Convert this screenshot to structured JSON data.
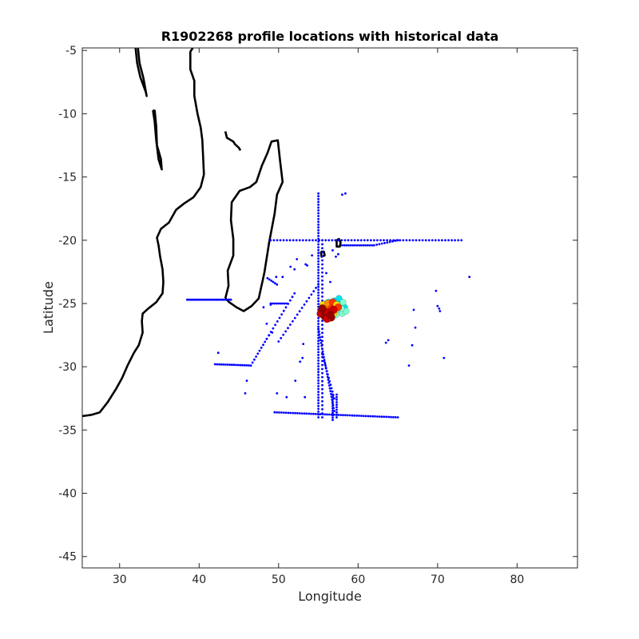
{
  "chart_data": {
    "type": "scatter",
    "title": "R1902268 profile locations with historical data",
    "xlabel": "Longitude",
    "ylabel": "Latitude",
    "xlim": [
      25.3,
      87.6
    ],
    "ylim": [
      -45.9,
      -4.8
    ],
    "xticks": [
      30,
      40,
      50,
      60,
      70,
      80
    ],
    "yticks": [
      -5,
      -10,
      -15,
      -20,
      -25,
      -30,
      -35,
      -40,
      -45
    ],
    "grid": false,
    "legend": "none",
    "colors": {
      "historical": "#0000ff",
      "coast": "#000000",
      "profile_ramp": [
        "#00e5ee",
        "#7fffd4",
        "#ffd700",
        "#ff8c00",
        "#ff3300",
        "#cc0000",
        "#990000"
      ]
    },
    "coastlines": [
      [
        [
          25.3,
          -33.9
        ],
        [
          26.5,
          -33.8
        ],
        [
          27.5,
          -33.6
        ],
        [
          28.5,
          -32.8
        ],
        [
          29.5,
          -31.8
        ],
        [
          30.3,
          -30.9
        ],
        [
          31.0,
          -29.9
        ],
        [
          31.8,
          -28.9
        ],
        [
          32.4,
          -28.3
        ],
        [
          32.9,
          -27.3
        ],
        [
          32.8,
          -26.4
        ],
        [
          32.9,
          -25.8
        ],
        [
          33.6,
          -25.4
        ],
        [
          34.6,
          -24.9
        ],
        [
          35.4,
          -24.2
        ],
        [
          35.5,
          -23.3
        ],
        [
          35.4,
          -22.3
        ],
        [
          35.1,
          -21.3
        ],
        [
          34.9,
          -20.4
        ],
        [
          34.7,
          -19.8
        ],
        [
          35.2,
          -19.1
        ],
        [
          36.2,
          -18.6
        ],
        [
          37.1,
          -17.6
        ],
        [
          38.1,
          -17.1
        ],
        [
          39.3,
          -16.6
        ],
        [
          40.2,
          -15.8
        ],
        [
          40.6,
          -14.8
        ],
        [
          40.5,
          -13.4
        ],
        [
          40.4,
          -12.1
        ],
        [
          40.2,
          -11.1
        ],
        [
          39.8,
          -10.0
        ],
        [
          39.4,
          -8.6
        ],
        [
          39.4,
          -7.4
        ],
        [
          38.9,
          -6.5
        ],
        [
          38.9,
          -5.1
        ],
        [
          39.2,
          -4.8
        ]
      ],
      [
        [
          43.3,
          -24.6
        ],
        [
          43.7,
          -23.6
        ],
        [
          43.6,
          -22.4
        ],
        [
          44.3,
          -21.2
        ],
        [
          44.3,
          -19.9
        ],
        [
          44.0,
          -18.4
        ],
        [
          44.1,
          -17.0
        ],
        [
          45.1,
          -16.1
        ],
        [
          46.4,
          -15.8
        ],
        [
          47.2,
          -15.4
        ],
        [
          47.9,
          -14.1
        ],
        [
          48.6,
          -13.1
        ],
        [
          49.1,
          -12.2
        ],
        [
          49.9,
          -12.1
        ],
        [
          50.2,
          -13.8
        ],
        [
          50.5,
          -15.4
        ],
        [
          49.8,
          -16.4
        ],
        [
          49.5,
          -17.9
        ],
        [
          48.8,
          -20.2
        ],
        [
          48.2,
          -22.6
        ],
        [
          47.5,
          -24.6
        ],
        [
          46.6,
          -25.2
        ],
        [
          45.6,
          -25.6
        ],
        [
          44.7,
          -25.3
        ],
        [
          43.8,
          -24.9
        ],
        [
          43.3,
          -24.6
        ]
      ],
      [
        [
          32.0,
          -4.8
        ],
        [
          32.2,
          -6.0
        ],
        [
          32.6,
          -7.1
        ],
        [
          33.3,
          -8.3
        ],
        [
          33.4,
          -8.6
        ],
        [
          33.0,
          -7.2
        ],
        [
          32.5,
          -6.0
        ],
        [
          32.3,
          -4.8
        ]
      ],
      [
        [
          34.4,
          -9.7
        ],
        [
          34.6,
          -11.0
        ],
        [
          34.7,
          -12.5
        ],
        [
          35.2,
          -13.6
        ],
        [
          35.3,
          -14.4
        ],
        [
          34.9,
          -13.6
        ],
        [
          34.6,
          -12.1
        ],
        [
          34.4,
          -10.6
        ],
        [
          34.2,
          -9.8
        ],
        [
          34.4,
          -9.7
        ]
      ],
      [
        [
          57.3,
          -20.0
        ],
        [
          57.6,
          -19.9
        ],
        [
          57.8,
          -20.2
        ],
        [
          57.7,
          -20.5
        ],
        [
          57.3,
          -20.5
        ],
        [
          57.3,
          -20.0
        ]
      ],
      [
        [
          55.3,
          -20.9
        ],
        [
          55.7,
          -20.9
        ],
        [
          55.8,
          -21.2
        ],
        [
          55.4,
          -21.3
        ],
        [
          55.3,
          -20.9
        ]
      ],
      [
        [
          43.3,
          -11.4
        ],
        [
          43.5,
          -11.9
        ],
        [
          44.3,
          -12.2
        ],
        [
          44.5,
          -12.4
        ],
        [
          45.0,
          -12.7
        ],
        [
          45.2,
          -12.9
        ]
      ]
    ],
    "historical_points": {
      "segments": [
        [
          38.5,
          -24.7,
          44.0,
          -24.7,
          25
        ],
        [
          49.0,
          -20.0,
          73.0,
          -20.0,
          60
        ],
        [
          55.0,
          -16.3,
          55.0,
          -34.0,
          80
        ],
        [
          55.5,
          -20.0,
          55.5,
          -34.0,
          45
        ],
        [
          49.5,
          -33.6,
          65.0,
          -34.0,
          55
        ],
        [
          42.0,
          -29.8,
          46.5,
          -29.9,
          18
        ],
        [
          46.5,
          -29.9,
          48.5,
          -27.8,
          10
        ],
        [
          48.5,
          -27.8,
          52.0,
          -24.2,
          14
        ],
        [
          50.0,
          -28.0,
          55.0,
          -23.5,
          18
        ],
        [
          55.0,
          -27.0,
          57.0,
          -33.5,
          30
        ],
        [
          55.5,
          -29.0,
          57.0,
          -32.5,
          14
        ],
        [
          58.0,
          -20.4,
          62.0,
          -20.4,
          16
        ],
        [
          62.0,
          -20.4,
          65.0,
          -20.0,
          10
        ],
        [
          49.0,
          -25.0,
          51.0,
          -25.0,
          9
        ],
        [
          48.6,
          -23.0,
          49.8,
          -23.5,
          6
        ],
        [
          56.8,
          -32.2,
          56.8,
          -34.2,
          12
        ],
        [
          57.3,
          -32.2,
          57.3,
          -34.0,
          10
        ]
      ],
      "points": [
        [
          58.0,
          -16.4
        ],
        [
          58.4,
          -16.3
        ],
        [
          74.0,
          -22.9
        ],
        [
          69.8,
          -24.0
        ],
        [
          70.0,
          -25.2
        ],
        [
          70.2,
          -25.4
        ],
        [
          70.3,
          -25.6
        ],
        [
          67.0,
          -25.5
        ],
        [
          67.2,
          -26.9
        ],
        [
          66.8,
          -28.3
        ],
        [
          66.4,
          -29.9
        ],
        [
          70.8,
          -29.3
        ],
        [
          63.8,
          -27.9
        ],
        [
          63.5,
          -28.1
        ],
        [
          52.7,
          -29.6
        ],
        [
          53.0,
          -29.3
        ],
        [
          52.1,
          -31.1
        ],
        [
          51.0,
          -32.4
        ],
        [
          53.3,
          -32.4
        ],
        [
          49.8,
          -32.1
        ],
        [
          49.2,
          -27.3
        ],
        [
          48.8,
          -27.5
        ],
        [
          46.0,
          -31.1
        ],
        [
          45.8,
          -32.1
        ],
        [
          42.4,
          -28.9
        ],
        [
          51.5,
          -22.1
        ],
        [
          52.0,
          -22.3
        ],
        [
          52.3,
          -21.5
        ],
        [
          53.4,
          -21.9
        ],
        [
          53.6,
          -22.0
        ],
        [
          54.2,
          -21.2
        ],
        [
          49.7,
          -22.9
        ],
        [
          50.5,
          -22.9
        ],
        [
          49.0,
          -25.1
        ],
        [
          56.0,
          -22.6
        ],
        [
          56.5,
          -23.3
        ],
        [
          56.8,
          -20.8
        ],
        [
          57.2,
          -21.3
        ],
        [
          57.5,
          -21.1
        ],
        [
          48.5,
          -26.6
        ],
        [
          48.1,
          -25.3
        ],
        [
          53.1,
          -28.2
        ]
      ]
    },
    "profile_points": {
      "blue_cluster": [
        [
          56.0,
          -25.0
        ],
        [
          56.5,
          -25.3
        ],
        [
          57.0,
          -24.8
        ],
        [
          57.5,
          -25.5
        ],
        [
          57.8,
          -25.0
        ],
        [
          58.0,
          -25.8
        ],
        [
          58.3,
          -25.3
        ],
        [
          57.2,
          -25.9
        ],
        [
          56.8,
          -25.6
        ],
        [
          58.5,
          -25.6
        ],
        [
          57.6,
          -24.6
        ],
        [
          58.1,
          -24.9
        ],
        [
          56.3,
          -24.9
        ],
        [
          57.9,
          -25.4
        ]
      ],
      "warm_cluster": [
        [
          55.6,
          -25.1
        ],
        [
          56.2,
          -25.0
        ],
        [
          56.8,
          -24.9
        ],
        [
          57.3,
          -25.1
        ],
        [
          56.0,
          -25.5
        ],
        [
          56.6,
          -25.4
        ],
        [
          57.1,
          -25.5
        ],
        [
          55.8,
          -25.7
        ],
        [
          56.3,
          -25.8
        ],
        [
          56.9,
          -25.8
        ],
        [
          55.4,
          -25.6
        ],
        [
          57.5,
          -25.3
        ]
      ],
      "red_cluster": [
        [
          55.3,
          -25.8
        ],
        [
          55.8,
          -26.0
        ],
        [
          56.2,
          -25.7
        ],
        [
          56.6,
          -26.1
        ],
        [
          56.9,
          -25.5
        ],
        [
          55.5,
          -25.4
        ],
        [
          56.1,
          -26.2
        ],
        [
          56.5,
          -25.9
        ]
      ]
    }
  }
}
